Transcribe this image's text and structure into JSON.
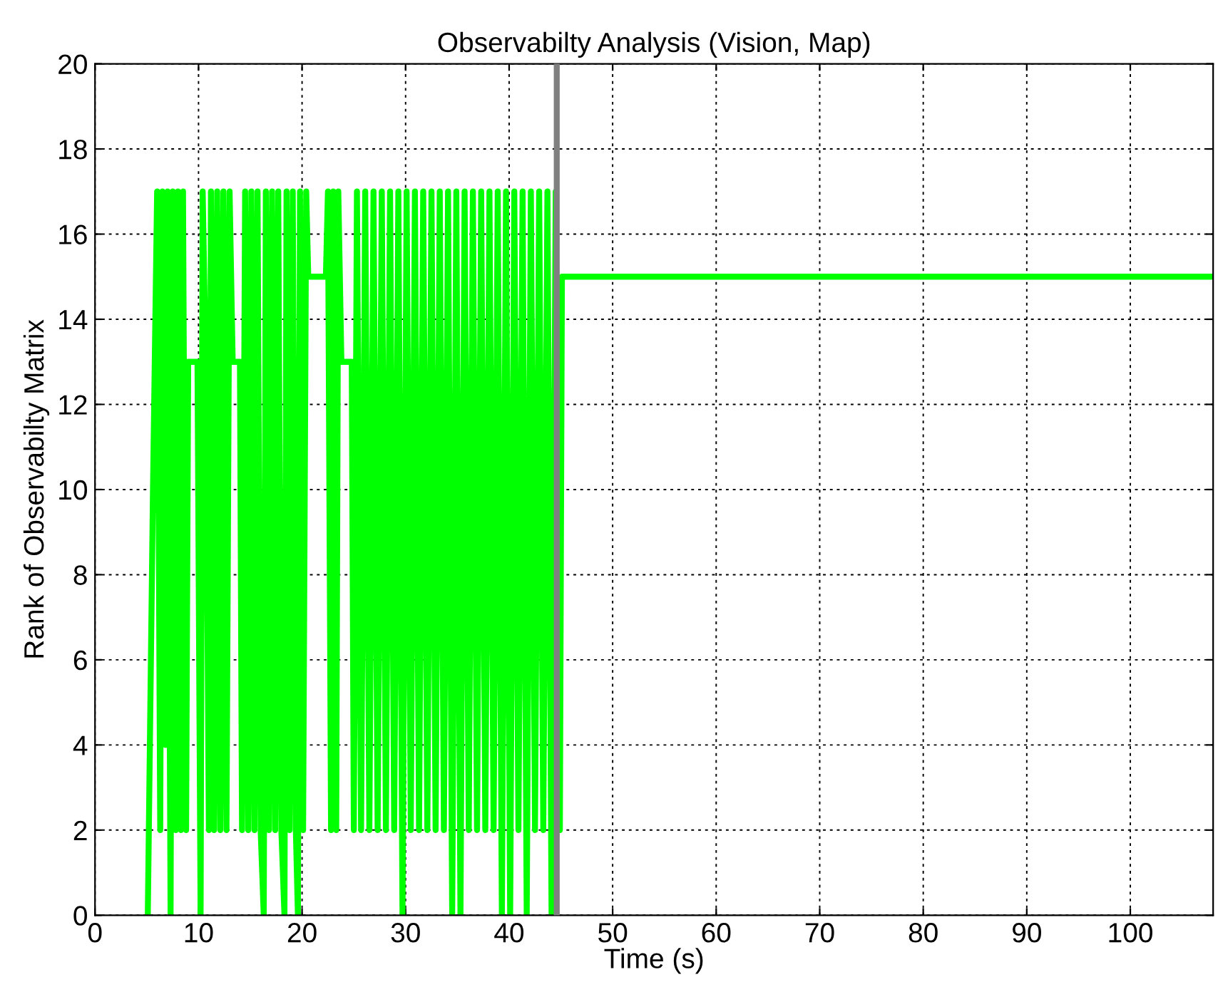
{
  "chart_data": {
    "type": "line",
    "title": "Observabilty Analysis (Vision, Map)",
    "xlabel": "Time (s)",
    "ylabel": "Rank of Observabilty Matrix",
    "xlim": [
      0,
      108
    ],
    "xticks": [
      0,
      10,
      20,
      30,
      40,
      50,
      60,
      70,
      80,
      90,
      100
    ],
    "ylim": [
      0,
      20
    ],
    "yticks": [
      0,
      2,
      4,
      6,
      8,
      10,
      12,
      14,
      16,
      18,
      20
    ],
    "grid": true,
    "legend": false,
    "marker": "none",
    "line_style": "solid",
    "ref_lines": [
      {
        "axis": "x",
        "value": 44.6,
        "color": "#808080"
      }
    ],
    "series": [
      {
        "color": "#00ff00",
        "x": [
          5.1,
          5.2,
          5.6,
          6.0,
          6.3,
          6.5,
          6.8,
          7.0,
          7.3,
          7.5,
          7.8,
          8.0,
          8.3,
          8.5,
          8.8,
          9.0,
          9.9,
          10.2,
          10.4,
          10.7,
          11.0,
          11.2,
          11.5,
          11.8,
          12.1,
          12.4,
          12.7,
          13.0,
          13.3,
          14.0,
          14.2,
          14.5,
          14.8,
          15.1,
          15.4,
          15.7,
          16.0,
          16.3,
          16.5,
          16.8,
          17.1,
          17.4,
          17.7,
          18.0,
          18.3,
          18.5,
          18.8,
          19.1,
          19.4,
          19.6,
          19.8,
          20.1,
          20.4,
          20.6,
          22.3,
          22.5,
          22.8,
          23.0,
          23.3,
          23.5,
          23.8,
          24.8,
          25.0,
          25.3,
          25.7,
          26.1,
          26.5,
          26.9,
          27.3,
          27.7,
          28.1,
          28.5,
          28.9,
          29.3,
          29.7,
          30.1,
          30.5,
          30.9,
          31.3,
          31.7,
          32.1,
          32.5,
          32.9,
          33.3,
          33.7,
          34.1,
          34.5,
          34.9,
          35.3,
          35.7,
          36.1,
          36.5,
          36.9,
          37.3,
          37.7,
          38.1,
          38.5,
          38.9,
          39.3,
          39.7,
          40.1,
          40.5,
          40.9,
          41.3,
          41.7,
          42.1,
          42.5,
          42.9,
          43.3,
          43.7,
          44.1,
          44.5,
          44.9,
          45.1,
          108
        ],
        "values": [
          0,
          2,
          10,
          17,
          2,
          17,
          4,
          17,
          0,
          17,
          2,
          17,
          2,
          17,
          2,
          13,
          13,
          0,
          17,
          13,
          2,
          17,
          2,
          17,
          2,
          17,
          2,
          17,
          13,
          13,
          2,
          17,
          2,
          17,
          2,
          17,
          2,
          0,
          17,
          2,
          17,
          2,
          17,
          2,
          0,
          17,
          2,
          17,
          2,
          0,
          17,
          2,
          17,
          15,
          15,
          17,
          2,
          17,
          2,
          17,
          13,
          13,
          2,
          17,
          2,
          17,
          2,
          17,
          2,
          17,
          2,
          17,
          2,
          17,
          0,
          17,
          2,
          17,
          2,
          17,
          2,
          17,
          2,
          17,
          2,
          17,
          0,
          17,
          0,
          17,
          2,
          17,
          2,
          17,
          2,
          17,
          2,
          17,
          0,
          17,
          0,
          17,
          2,
          17,
          0,
          17,
          2,
          17,
          2,
          17,
          0,
          17,
          2,
          15,
          15
        ]
      }
    ]
  }
}
